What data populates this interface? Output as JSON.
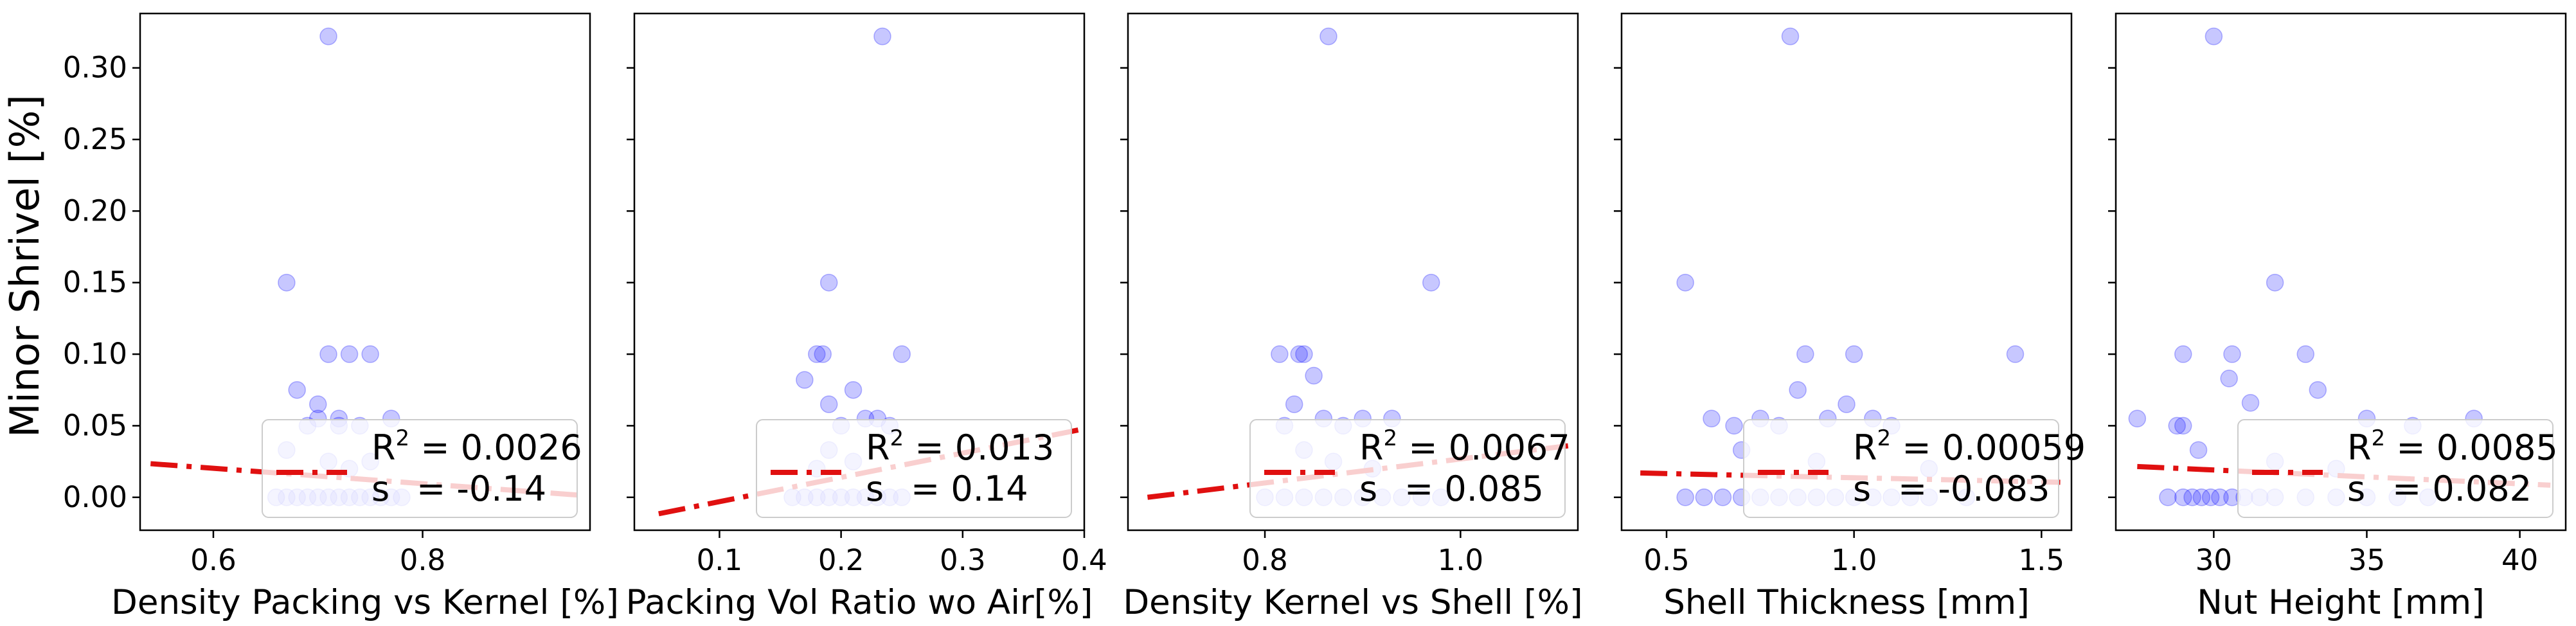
{
  "figure": {
    "ylabel": "Minor Shrivel [%]"
  },
  "chart_data": [
    {
      "type": "scatter",
      "xlabel": "Density Packing vs Kernel [%]",
      "ylabel": "Minor Shrivel [%]",
      "xlim": [
        0.53,
        0.96
      ],
      "ylim": [
        -0.023,
        0.338
      ],
      "xticks": [
        0.6,
        0.8
      ],
      "xtick_labels": [
        "0.6",
        "0.8"
      ],
      "yticks": [
        0.0,
        0.05,
        0.1,
        0.15,
        0.2,
        0.25,
        0.3
      ],
      "ytick_labels": [
        "0.00",
        "0.05",
        "0.10",
        "0.15",
        "0.20",
        "0.25",
        "0.30"
      ],
      "grid": false,
      "legend_position": "lower right",
      "legend": {
        "r2_label": "R",
        "r2_sup": "2",
        "r2_value": " = 0.0026",
        "s_label": "s",
        "s_value": "= -0.14"
      },
      "trend": {
        "x": [
          0.54,
          0.95
        ],
        "y": [
          0.0235,
          0.0015
        ]
      },
      "points": [
        [
          0.71,
          0.322
        ],
        [
          0.67,
          0.15
        ],
        [
          0.71,
          0.1
        ],
        [
          0.73,
          0.1
        ],
        [
          0.75,
          0.1
        ],
        [
          0.68,
          0.075
        ],
        [
          0.7,
          0.065
        ],
        [
          0.72,
          0.055
        ],
        [
          0.7,
          0.055
        ],
        [
          0.77,
          0.055
        ],
        [
          0.69,
          0.05
        ],
        [
          0.72,
          0.05
        ],
        [
          0.74,
          0.05
        ],
        [
          0.67,
          0.033
        ],
        [
          0.71,
          0.025
        ],
        [
          0.75,
          0.025
        ],
        [
          0.73,
          0.02
        ],
        [
          0.66,
          0.0
        ],
        [
          0.67,
          0.0
        ],
        [
          0.68,
          0.0
        ],
        [
          0.69,
          0.0
        ],
        [
          0.7,
          0.0
        ],
        [
          0.71,
          0.0
        ],
        [
          0.72,
          0.0
        ],
        [
          0.73,
          0.0
        ],
        [
          0.74,
          0.0
        ],
        [
          0.75,
          0.0
        ],
        [
          0.76,
          0.0
        ],
        [
          0.77,
          0.0
        ],
        [
          0.78,
          0.0
        ]
      ]
    },
    {
      "type": "scatter",
      "xlabel": "Packing Vol Ratio wo Air[%]",
      "ylabel": "",
      "xlim": [
        0.03,
        0.4
      ],
      "ylim": [
        -0.023,
        0.338
      ],
      "xticks": [
        0.1,
        0.2,
        0.3,
        0.4
      ],
      "xtick_labels": [
        "0.1",
        "0.2",
        "0.3",
        "0.4"
      ],
      "yticks": [
        0.0,
        0.05,
        0.1,
        0.15,
        0.2,
        0.25,
        0.3
      ],
      "ytick_labels": [],
      "grid": false,
      "legend_position": "lower right",
      "legend": {
        "r2_label": "R",
        "r2_sup": "2",
        "r2_value": " = 0.013",
        "s_label": "s",
        "s_value": "= 0.14"
      },
      "trend": {
        "x": [
          0.05,
          0.395
        ],
        "y": [
          -0.0115,
          0.047
        ]
      },
      "points": [
        [
          0.234,
          0.322
        ],
        [
          0.19,
          0.15
        ],
        [
          0.18,
          0.1
        ],
        [
          0.185,
          0.1
        ],
        [
          0.25,
          0.1
        ],
        [
          0.17,
          0.082
        ],
        [
          0.19,
          0.065
        ],
        [
          0.21,
          0.075
        ],
        [
          0.22,
          0.055
        ],
        [
          0.23,
          0.055
        ],
        [
          0.2,
          0.05
        ],
        [
          0.24,
          0.05
        ],
        [
          0.19,
          0.033
        ],
        [
          0.21,
          0.025
        ],
        [
          0.18,
          0.02
        ],
        [
          0.16,
          0.0
        ],
        [
          0.17,
          0.0
        ],
        [
          0.18,
          0.0
        ],
        [
          0.19,
          0.0
        ],
        [
          0.2,
          0.0
        ],
        [
          0.21,
          0.0
        ],
        [
          0.22,
          0.0
        ],
        [
          0.23,
          0.0
        ],
        [
          0.24,
          0.0
        ],
        [
          0.25,
          0.0
        ]
      ]
    },
    {
      "type": "scatter",
      "xlabel": "Density Kernel vs Shell [%]",
      "ylabel": "",
      "xlim": [
        0.66,
        1.12
      ],
      "ylim": [
        -0.023,
        0.338
      ],
      "xticks": [
        0.8,
        1.0
      ],
      "xtick_labels": [
        "0.8",
        "1.0"
      ],
      "yticks": [
        0.0,
        0.05,
        0.1,
        0.15,
        0.2,
        0.25,
        0.3
      ],
      "ytick_labels": [],
      "grid": false,
      "legend_position": "lower right",
      "legend": {
        "r2_label": "R",
        "r2_sup": "2",
        "r2_value": " = 0.0067",
        "s_label": "s",
        "s_value": "= 0.085"
      },
      "trend": {
        "x": [
          0.68,
          1.11
        ],
        "y": [
          0.0,
          0.036
        ]
      },
      "points": [
        [
          0.865,
          0.322
        ],
        [
          0.97,
          0.15
        ],
        [
          0.815,
          0.1
        ],
        [
          0.835,
          0.1
        ],
        [
          0.84,
          0.1
        ],
        [
          0.85,
          0.085
        ],
        [
          0.83,
          0.065
        ],
        [
          0.86,
          0.055
        ],
        [
          0.9,
          0.055
        ],
        [
          0.93,
          0.055
        ],
        [
          0.82,
          0.05
        ],
        [
          0.88,
          0.05
        ],
        [
          0.84,
          0.033
        ],
        [
          0.87,
          0.025
        ],
        [
          0.91,
          0.02
        ],
        [
          0.8,
          0.0
        ],
        [
          0.82,
          0.0
        ],
        [
          0.84,
          0.0
        ],
        [
          0.86,
          0.0
        ],
        [
          0.88,
          0.0
        ],
        [
          0.9,
          0.0
        ],
        [
          0.92,
          0.0
        ],
        [
          0.94,
          0.0
        ],
        [
          0.96,
          0.0
        ],
        [
          0.98,
          0.0
        ]
      ]
    },
    {
      "type": "scatter",
      "xlabel": "Shell Thickness [mm]",
      "ylabel": "",
      "xlim": [
        0.38,
        1.58
      ],
      "ylim": [
        -0.023,
        0.338
      ],
      "xticks": [
        0.5,
        1.0,
        1.5
      ],
      "xtick_labels": [
        "0.5",
        "1.0",
        "1.5"
      ],
      "yticks": [
        0.0,
        0.05,
        0.1,
        0.15,
        0.2,
        0.25,
        0.3
      ],
      "ytick_labels": [],
      "grid": false,
      "legend_position": "lower right",
      "legend": {
        "r2_label": "R",
        "r2_sup": "2",
        "r2_value": " = 0.00059",
        "s_label": "s",
        "s_value": "= -0.083"
      },
      "trend": {
        "x": [
          0.43,
          1.55
        ],
        "y": [
          0.017,
          0.0105
        ]
      },
      "points": [
        [
          0.83,
          0.322
        ],
        [
          0.55,
          0.15
        ],
        [
          0.87,
          0.1
        ],
        [
          1.0,
          0.1
        ],
        [
          1.43,
          0.1
        ],
        [
          0.85,
          0.075
        ],
        [
          0.98,
          0.065
        ],
        [
          0.62,
          0.055
        ],
        [
          0.75,
          0.055
        ],
        [
          0.93,
          0.055
        ],
        [
          1.05,
          0.055
        ],
        [
          0.68,
          0.05
        ],
        [
          0.8,
          0.05
        ],
        [
          1.1,
          0.05
        ],
        [
          0.7,
          0.033
        ],
        [
          0.9,
          0.025
        ],
        [
          1.2,
          0.02
        ],
        [
          0.55,
          0.0
        ],
        [
          0.6,
          0.0
        ],
        [
          0.65,
          0.0
        ],
        [
          0.7,
          0.0
        ],
        [
          0.75,
          0.0
        ],
        [
          0.8,
          0.0
        ],
        [
          0.85,
          0.0
        ],
        [
          0.9,
          0.0
        ],
        [
          0.95,
          0.0
        ],
        [
          1.0,
          0.0
        ],
        [
          1.05,
          0.0
        ],
        [
          1.1,
          0.0
        ],
        [
          1.15,
          0.0
        ],
        [
          1.2,
          0.0
        ],
        [
          1.3,
          0.0
        ]
      ]
    },
    {
      "type": "scatter",
      "xlabel": "Nut Height [mm]",
      "ylabel": "",
      "xlim": [
        26.8,
        41.5
      ],
      "ylim": [
        -0.023,
        0.338
      ],
      "xticks": [
        30,
        35,
        40
      ],
      "xtick_labels": [
        "30",
        "35",
        "40"
      ],
      "yticks": [
        0.0,
        0.05,
        0.1,
        0.15,
        0.2,
        0.25,
        0.3
      ],
      "ytick_labels": [],
      "grid": false,
      "legend_position": "lower right",
      "legend": {
        "r2_label": "R",
        "r2_sup": "2",
        "r2_value": " = 0.0085",
        "s_label": "s",
        "s_value": "= 0.082"
      },
      "trend": {
        "x": [
          27.5,
          41.0
        ],
        "y": [
          0.0215,
          0.0085
        ]
      },
      "points": [
        [
          30.0,
          0.322
        ],
        [
          32.0,
          0.15
        ],
        [
          29.0,
          0.1
        ],
        [
          30.6,
          0.1
        ],
        [
          33.0,
          0.1
        ],
        [
          30.5,
          0.083
        ],
        [
          31.2,
          0.066
        ],
        [
          33.4,
          0.075
        ],
        [
          27.5,
          0.055
        ],
        [
          28.8,
          0.05
        ],
        [
          29.0,
          0.05
        ],
        [
          35.0,
          0.055
        ],
        [
          36.5,
          0.05
        ],
        [
          38.5,
          0.055
        ],
        [
          29.5,
          0.033
        ],
        [
          32.0,
          0.025
        ],
        [
          34.0,
          0.02
        ],
        [
          28.5,
          0.0
        ],
        [
          29.0,
          0.0
        ],
        [
          29.3,
          0.0
        ],
        [
          29.6,
          0.0
        ],
        [
          29.9,
          0.0
        ],
        [
          30.2,
          0.0
        ],
        [
          30.6,
          0.0
        ],
        [
          31.0,
          0.0
        ],
        [
          31.5,
          0.0
        ],
        [
          32.0,
          0.0
        ],
        [
          33.0,
          0.0
        ],
        [
          34.0,
          0.0
        ],
        [
          35.0,
          0.0
        ],
        [
          36.0,
          0.0
        ],
        [
          37.0,
          0.0
        ]
      ]
    }
  ]
}
